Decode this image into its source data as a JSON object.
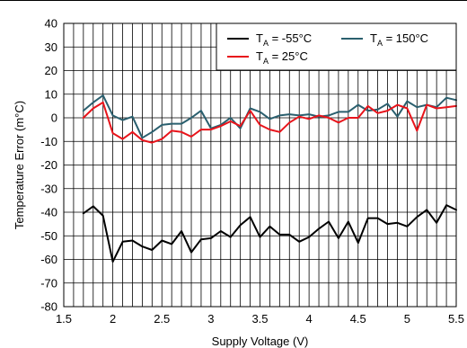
{
  "chart_data": {
    "type": "line",
    "xlabel": "Supply Voltage (V)",
    "ylabel": "Temperature Error (m°C)",
    "xlim": [
      1.5,
      5.5
    ],
    "ylim": [
      -80,
      40
    ],
    "xticks": [
      1.5,
      2,
      2.5,
      3,
      3.5,
      4,
      4.5,
      5,
      5.5
    ],
    "xtick_labels": [
      "1.5",
      "2",
      "2.5",
      "3",
      "3.5",
      "4",
      "4.5",
      "5",
      "5.5"
    ],
    "yticks": [
      40,
      30,
      20,
      10,
      0,
      -10,
      -20,
      -30,
      -40,
      -50,
      -60,
      -70,
      -80
    ],
    "ytick_labels": [
      "40",
      "30",
      "20",
      "10",
      "0",
      "-10",
      "-20",
      "-30",
      "-40",
      "-50",
      "-60",
      "-70",
      "-80"
    ],
    "minor_x_grid_step": 0.1,
    "grid": true,
    "legend_position": "top-right",
    "legend": [
      {
        "pre": "T",
        "sub": "A",
        "post": " = -55°C",
        "color": "#000000"
      },
      {
        "pre": "T",
        "sub": "A",
        "post": " = 150°C",
        "color": "#2a5f6e"
      },
      {
        "pre": "T",
        "sub": "A",
        "post": " = 25°C",
        "color": "#e8141b"
      }
    ],
    "series": [
      {
        "name": "TA = -55°C",
        "color": "#000000",
        "x": [
          1.7,
          1.8,
          1.9,
          2.0,
          2.1,
          2.2,
          2.3,
          2.4,
          2.5,
          2.6,
          2.7,
          2.8,
          2.9,
          3.0,
          3.1,
          3.2,
          3.3,
          3.4,
          3.5,
          3.6,
          3.7,
          3.8,
          3.9,
          4.0,
          4.1,
          4.2,
          4.3,
          4.4,
          4.5,
          4.6,
          4.7,
          4.8,
          4.9,
          5.0,
          5.1,
          5.2,
          5.3,
          5.4,
          5.5
        ],
        "y": [
          -40.5,
          -37.5,
          -41.5,
          -61,
          -52.5,
          -52,
          -54.5,
          -56,
          -52,
          -53.5,
          -48,
          -57,
          -51.5,
          -51,
          -48,
          -50.5,
          -45.5,
          -42,
          -50.5,
          -46,
          -49.5,
          -49.5,
          -52.5,
          -50.5,
          -47,
          -44,
          -51,
          -44,
          -53,
          -42.5,
          -42.5,
          -45,
          -44.5,
          -46,
          -42,
          -39,
          -44.5,
          -37,
          -39
        ]
      },
      {
        "name": "TA = 150°C",
        "color": "#2a5f6e",
        "x": [
          1.7,
          1.8,
          1.9,
          2.0,
          2.1,
          2.2,
          2.3,
          2.4,
          2.5,
          2.6,
          2.7,
          2.8,
          2.9,
          3.0,
          3.1,
          3.2,
          3.3,
          3.4,
          3.5,
          3.6,
          3.7,
          3.8,
          3.9,
          4.0,
          4.1,
          4.2,
          4.3,
          4.4,
          4.5,
          4.6,
          4.7,
          4.8,
          4.9,
          5.0,
          5.1,
          5.2,
          5.3,
          5.4,
          5.5
        ],
        "y": [
          3,
          6.5,
          9.5,
          1,
          -1,
          0.5,
          -8.5,
          -6,
          -3,
          -2.5,
          -2.5,
          0,
          3,
          -4.5,
          -3,
          0,
          -4.5,
          4,
          2.5,
          -0.5,
          1,
          1.5,
          1,
          1.5,
          0.5,
          1,
          2.5,
          2.5,
          5.5,
          3,
          3.5,
          6,
          0.5,
          7,
          4.5,
          5.5,
          4.5,
          8.5,
          7.5
        ]
      },
      {
        "name": "TA = 25°C",
        "color": "#e8141b",
        "x": [
          1.7,
          1.8,
          1.9,
          2.0,
          2.1,
          2.2,
          2.3,
          2.4,
          2.5,
          2.6,
          2.7,
          2.8,
          2.9,
          3.0,
          3.1,
          3.2,
          3.3,
          3.4,
          3.5,
          3.6,
          3.7,
          3.8,
          3.9,
          4.0,
          4.1,
          4.2,
          4.3,
          4.4,
          4.5,
          4.6,
          4.7,
          4.8,
          4.9,
          5.0,
          5.1,
          5.2,
          5.3,
          5.4,
          5.5
        ],
        "y": [
          0,
          4,
          6.5,
          -6.5,
          -9,
          -6,
          -9.5,
          -10.5,
          -9,
          -5.5,
          -6,
          -8,
          -5,
          -5,
          -3.5,
          -1.5,
          -3.5,
          3,
          -3,
          -5,
          -6,
          -2,
          0.5,
          -0.5,
          1,
          0,
          -2,
          0,
          0,
          5,
          2,
          3,
          5.5,
          4,
          -5.5,
          5.5,
          4,
          4.5,
          5
        ]
      }
    ]
  }
}
